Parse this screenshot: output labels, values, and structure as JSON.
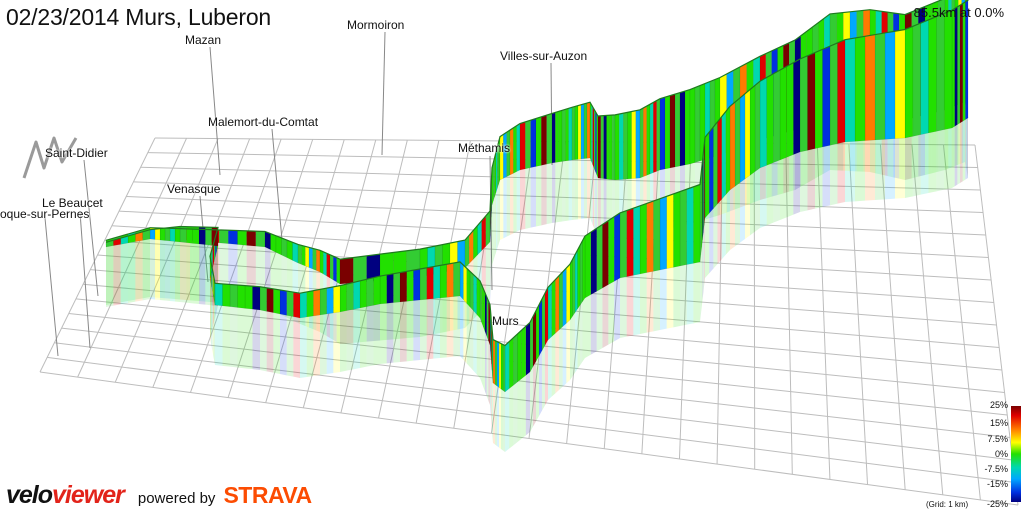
{
  "header": {
    "title": "02/23/2014 Murs, Luberon",
    "readout": "85.5km at 0.0%"
  },
  "places": [
    {
      "key": "mormoiron",
      "label": "Mormoiron"
    },
    {
      "key": "mazan",
      "label": "Mazan"
    },
    {
      "key": "villes",
      "label": "Villes-sur-Auzon"
    },
    {
      "key": "malemort",
      "label": "Malemort-du-Comtat"
    },
    {
      "key": "saint-didier",
      "label": "Saint-Didier"
    },
    {
      "key": "methamis",
      "label": "Méthamis"
    },
    {
      "key": "venasque",
      "label": "Venasque"
    },
    {
      "key": "beaucet",
      "label": "Le Beaucet"
    },
    {
      "key": "pernes",
      "label": "oque-sur-Pernes"
    },
    {
      "key": "murs",
      "label": "Murs"
    }
  ],
  "legend": {
    "ticks": [
      "25%",
      "15%",
      "7.5%",
      "0%",
      "-7.5%",
      "-15%",
      "-25%"
    ],
    "grid_note": "(Grid: 1 km)"
  },
  "brand": {
    "velo": "velo",
    "viewer": "viewer",
    "powered": "powered by",
    "strava": "STRAVA"
  },
  "colors": {
    "grid": "#bdbdbd",
    "gradient_colors": [
      "#000080",
      "#0030e0",
      "#00a8ff",
      "#00d8b0",
      "#22e000",
      "#33cc33",
      "#ffff00",
      "#ff7a00",
      "#e00000",
      "#7a0000"
    ],
    "strava": "#fc4c02",
    "veloviewer_red": "#e2231a"
  }
}
